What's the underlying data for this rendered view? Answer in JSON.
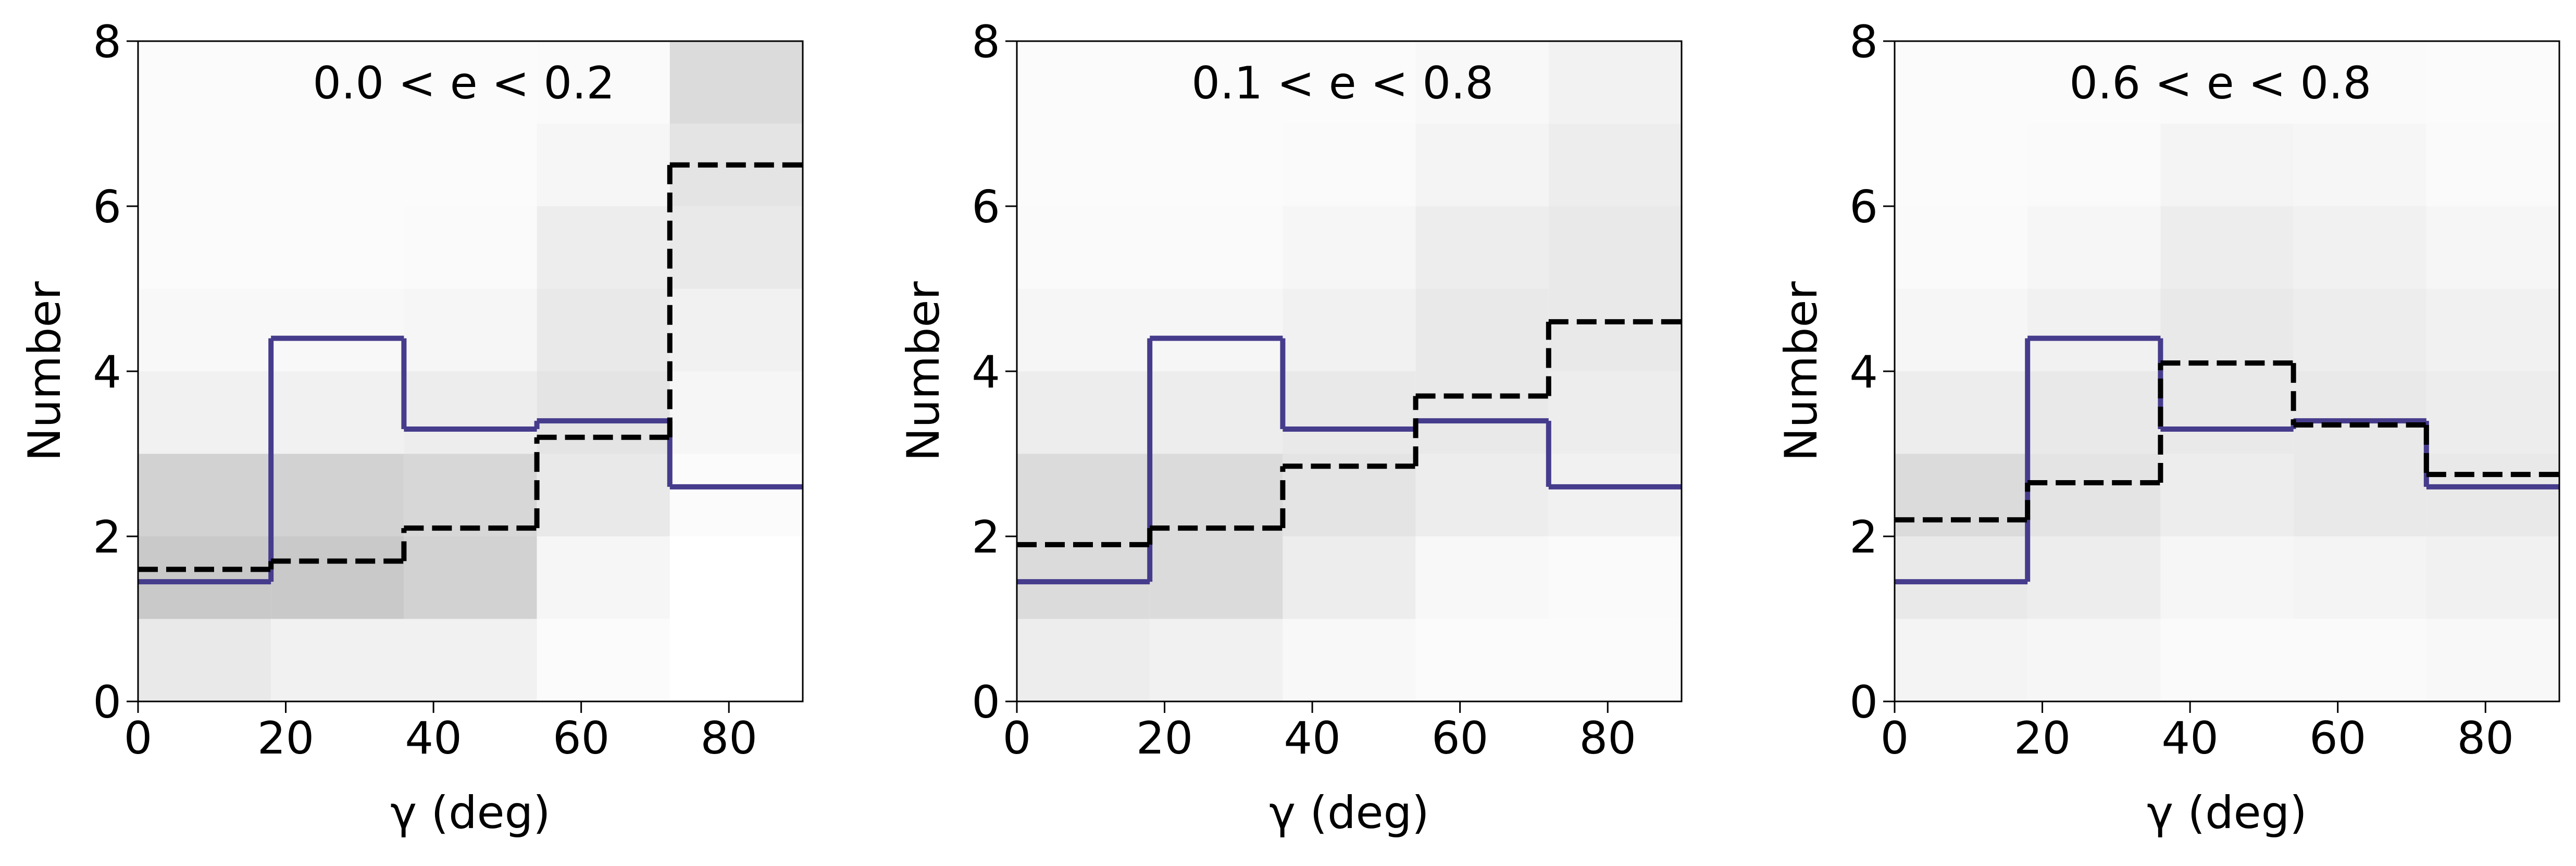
{
  "chart_data": [
    {
      "type": "step-histogram",
      "title": "0.0 < e < 0.2",
      "xlabel": "γ (deg)",
      "ylabel": "Number",
      "xlim": [
        0,
        90
      ],
      "ylim": [
        0,
        8
      ],
      "xticks": [
        0,
        20,
        40,
        60,
        80
      ],
      "yticks": [
        0,
        2,
        4,
        6,
        8
      ],
      "bins": [
        0,
        18,
        36,
        54,
        72,
        90
      ],
      "series": [
        {
          "color": "#463c8c",
          "linestyle": "solid",
          "values": [
            1.45,
            4.4,
            3.3,
            3.4,
            2.6
          ]
        },
        {
          "color": "#000000",
          "linestyle": "dashed",
          "values": [
            1.6,
            1.7,
            2.1,
            3.2,
            6.5
          ]
        }
      ],
      "heatmap": {
        "ybins": [
          0,
          1,
          2,
          3,
          4,
          5,
          6,
          7,
          8
        ],
        "values": [
          [
            0.12,
            0.3,
            0.25,
            0.08,
            0.04,
            0.02,
            0.02,
            0.02
          ],
          [
            0.08,
            0.3,
            0.25,
            0.08,
            0.04,
            0.02,
            0.02,
            0.02
          ],
          [
            0.08,
            0.25,
            0.22,
            0.1,
            0.05,
            0.03,
            0.02,
            0.02
          ],
          [
            0.02,
            0.05,
            0.12,
            0.15,
            0.12,
            0.1,
            0.05,
            0.03
          ],
          [
            0,
            0,
            0.02,
            0.05,
            0.08,
            0.12,
            0.15,
            0.2
          ]
        ]
      }
    },
    {
      "type": "step-histogram",
      "title": "0.1 < e < 0.8",
      "xlabel": "γ (deg)",
      "ylabel": "Number",
      "xlim": [
        0,
        90
      ],
      "ylim": [
        0,
        8
      ],
      "xticks": [
        0,
        20,
        40,
        60,
        80
      ],
      "yticks": [
        0,
        2,
        4,
        6,
        8
      ],
      "bins": [
        0,
        18,
        36,
        54,
        72,
        90
      ],
      "series": [
        {
          "color": "#463c8c",
          "linestyle": "solid",
          "values": [
            1.45,
            4.4,
            3.3,
            3.4,
            2.6
          ]
        },
        {
          "color": "#000000",
          "linestyle": "dashed",
          "values": [
            1.9,
            2.1,
            2.85,
            3.7,
            4.6
          ]
        }
      ],
      "heatmap": {
        "ybins": [
          0,
          1,
          2,
          3,
          4,
          5,
          6,
          7,
          8
        ],
        "values": [
          [
            0.1,
            0.2,
            0.2,
            0.1,
            0.05,
            0.03,
            0.02,
            0.02
          ],
          [
            0.08,
            0.2,
            0.2,
            0.1,
            0.05,
            0.03,
            0.02,
            0.02
          ],
          [
            0.04,
            0.1,
            0.15,
            0.12,
            0.08,
            0.05,
            0.03,
            0.02
          ],
          [
            0.02,
            0.04,
            0.1,
            0.12,
            0.12,
            0.1,
            0.06,
            0.04
          ],
          [
            0.02,
            0.03,
            0.08,
            0.1,
            0.12,
            0.12,
            0.1,
            0.07
          ]
        ]
      }
    },
    {
      "type": "step-histogram",
      "title": "0.6 < e < 0.8",
      "xlabel": "γ (deg)",
      "ylabel": "Number",
      "xlim": [
        0,
        90
      ],
      "ylim": [
        0,
        8
      ],
      "xticks": [
        0,
        20,
        40,
        60,
        80
      ],
      "yticks": [
        0,
        2,
        4,
        6,
        8
      ],
      "bins": [
        0,
        18,
        36,
        54,
        72,
        90
      ],
      "series": [
        {
          "color": "#463c8c",
          "linestyle": "solid",
          "values": [
            1.45,
            4.4,
            3.3,
            3.4,
            2.6
          ]
        },
        {
          "color": "#000000",
          "linestyle": "dashed",
          "values": [
            2.2,
            2.65,
            4.1,
            3.35,
            2.75
          ]
        }
      ],
      "heatmap": {
        "ybins": [
          0,
          1,
          2,
          3,
          4,
          5,
          6,
          7,
          8
        ],
        "values": [
          [
            0.06,
            0.12,
            0.2,
            0.1,
            0.05,
            0.03,
            0.02,
            0.02
          ],
          [
            0.05,
            0.1,
            0.15,
            0.12,
            0.08,
            0.05,
            0.03,
            0.02
          ],
          [
            0.03,
            0.05,
            0.1,
            0.12,
            0.12,
            0.1,
            0.06,
            0.03
          ],
          [
            0.03,
            0.06,
            0.12,
            0.12,
            0.1,
            0.08,
            0.05,
            0.03
          ],
          [
            0.04,
            0.08,
            0.12,
            0.1,
            0.08,
            0.05,
            0.03,
            0.02
          ]
        ]
      }
    }
  ]
}
